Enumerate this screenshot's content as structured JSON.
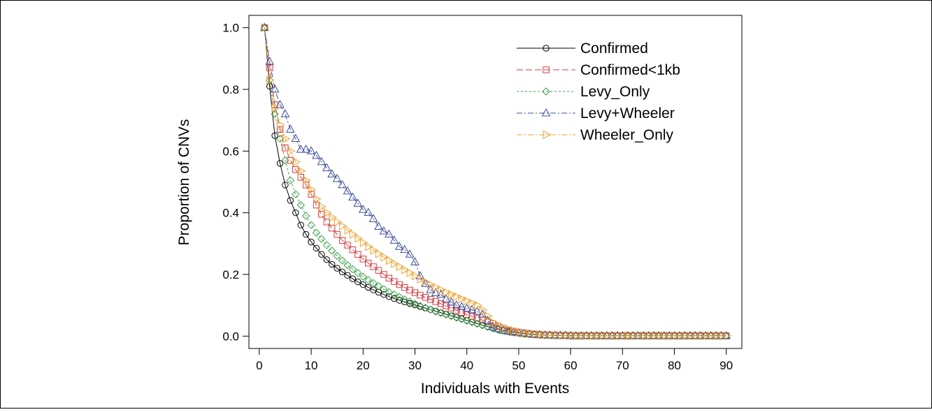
{
  "chart_data": {
    "type": "line",
    "title": "",
    "xlabel": "Individuals with Events",
    "ylabel": "Proportion of CNVs",
    "xlim": [
      -2,
      93
    ],
    "ylim": [
      -0.04,
      1.04
    ],
    "xticks": [
      0,
      10,
      20,
      30,
      40,
      50,
      60,
      70,
      80,
      90
    ],
    "xtick_labels": [
      "0",
      "10",
      "20",
      "30",
      "40",
      "50",
      "60",
      "70",
      "80",
      "90"
    ],
    "yticks": [
      0.0,
      0.2,
      0.4,
      0.6,
      0.8,
      1.0
    ],
    "ytick_labels": [
      "0.0",
      "0.2",
      "0.4",
      "0.6",
      "0.8",
      "1.0"
    ],
    "grid": false,
    "legend_position": "top-right",
    "x_start": 1,
    "series": [
      {
        "name": "Confirmed",
        "color": "#000000",
        "marker": "circle",
        "dash": "solid",
        "values": [
          1.0,
          0.81,
          0.65,
          0.56,
          0.49,
          0.44,
          0.4,
          0.36,
          0.33,
          0.305,
          0.285,
          0.265,
          0.248,
          0.233,
          0.22,
          0.208,
          0.197,
          0.186,
          0.176,
          0.167,
          0.158,
          0.15,
          0.142,
          0.135,
          0.128,
          0.122,
          0.116,
          0.111,
          0.106,
          0.101,
          0.096,
          0.091,
          0.086,
          0.081,
          0.076,
          0.071,
          0.066,
          0.061,
          0.056,
          0.051,
          0.046,
          0.041,
          0.036,
          0.031,
          0.026,
          0.022,
          0.019,
          0.016,
          0.013,
          0.01,
          0.008,
          0.006,
          0.005,
          0.004,
          0.003,
          0.003,
          0.002,
          0.002,
          0.002,
          0.001,
          0.001,
          0.001,
          0.001,
          0.001,
          0.001,
          0.001,
          0.001,
          0.001,
          0.001,
          0.001,
          0.001,
          0.001,
          0.001,
          0.001,
          0.001,
          0.001,
          0.001,
          0.001,
          0.001,
          0.001,
          0.001,
          0.001,
          0.001,
          0.001,
          0.001,
          0.001,
          0.001,
          0.001,
          0.001,
          0.001
        ]
      },
      {
        "name": "Confirmed<1kb",
        "color": "#e0393e",
        "marker": "square",
        "dash": "longdash",
        "values": [
          1.0,
          0.87,
          0.75,
          0.67,
          0.61,
          0.57,
          0.54,
          0.515,
          0.49,
          0.46,
          0.425,
          0.395,
          0.37,
          0.35,
          0.33,
          0.31,
          0.295,
          0.28,
          0.265,
          0.25,
          0.237,
          0.225,
          0.213,
          0.2,
          0.188,
          0.177,
          0.167,
          0.158,
          0.149,
          0.141,
          0.133,
          0.126,
          0.119,
          0.112,
          0.105,
          0.098,
          0.091,
          0.084,
          0.077,
          0.07,
          0.064,
          0.058,
          0.052,
          0.046,
          0.04,
          0.032,
          0.025,
          0.02,
          0.016,
          0.013,
          0.01,
          0.008,
          0.006,
          0.005,
          0.004,
          0.003,
          0.003,
          0.002,
          0.002,
          0.002,
          0.001,
          0.001,
          0.001,
          0.001,
          0.001,
          0.001,
          0.001,
          0.001,
          0.001,
          0.001,
          0.001,
          0.001,
          0.001,
          0.001,
          0.001,
          0.001,
          0.001,
          0.001,
          0.001,
          0.001,
          0.001,
          0.001,
          0.001,
          0.001,
          0.001,
          0.001,
          0.001,
          0.001,
          0.001,
          0.001
        ]
      },
      {
        "name": "Levy_Only",
        "color": "#3aa346",
        "marker": "diamond",
        "dash": "shortdash",
        "values": [
          1.0,
          0.83,
          0.72,
          0.64,
          0.57,
          0.505,
          0.46,
          0.425,
          0.39,
          0.36,
          0.335,
          0.315,
          0.295,
          0.277,
          0.26,
          0.245,
          0.23,
          0.217,
          0.205,
          0.193,
          0.182,
          0.172,
          0.162,
          0.152,
          0.143,
          0.135,
          0.127,
          0.119,
          0.112,
          0.105,
          0.098,
          0.092,
          0.086,
          0.08,
          0.075,
          0.07,
          0.065,
          0.06,
          0.055,
          0.05,
          0.045,
          0.04,
          0.035,
          0.03,
          0.025,
          0.021,
          0.018,
          0.015,
          0.012,
          0.01,
          0.008,
          0.006,
          0.005,
          0.004,
          0.003,
          0.003,
          0.002,
          0.002,
          0.002,
          0.001,
          0.001,
          0.001,
          0.001,
          0.001,
          0.001,
          0.001,
          0.001,
          0.001,
          0.001,
          0.001,
          0.001,
          0.001,
          0.001,
          0.001,
          0.001,
          0.001,
          0.001,
          0.001,
          0.001,
          0.001,
          0.001,
          0.001,
          0.001,
          0.001,
          0.001,
          0.001,
          0.001,
          0.001,
          0.001,
          0.001
        ]
      },
      {
        "name": "Levy+Wheeler",
        "color": "#3c4fa1",
        "marker": "triangle-up",
        "dash": "dashdot",
        "values": [
          1.0,
          0.89,
          0.8,
          0.75,
          0.72,
          0.67,
          0.64,
          0.605,
          0.605,
          0.6,
          0.585,
          0.565,
          0.545,
          0.525,
          0.51,
          0.49,
          0.47,
          0.45,
          0.43,
          0.41,
          0.4,
          0.38,
          0.355,
          0.34,
          0.33,
          0.31,
          0.29,
          0.28,
          0.265,
          0.24,
          0.195,
          0.17,
          0.15,
          0.14,
          0.135,
          0.12,
          0.11,
          0.1,
          0.095,
          0.09,
          0.085,
          0.08,
          0.07,
          0.05,
          0.03,
          0.024,
          0.018,
          0.015,
          0.012,
          0.01,
          0.008,
          0.006,
          0.005,
          0.004,
          0.003,
          0.003,
          0.002,
          0.002,
          0.002,
          0.001,
          0.001,
          0.001,
          0.001,
          0.001,
          0.001,
          0.001,
          0.001,
          0.001,
          0.001,
          0.001,
          0.001,
          0.001,
          0.001,
          0.001,
          0.001,
          0.001,
          0.001,
          0.001,
          0.001,
          0.001,
          0.001,
          0.001,
          0.001,
          0.001,
          0.001,
          0.001,
          0.001,
          0.001,
          0.001,
          0.001
        ]
      },
      {
        "name": "Wheeler_Only",
        "color": "#f5a12b",
        "marker": "triangle-right",
        "dash": "dashdot",
        "values": [
          1.0,
          0.83,
          0.74,
          0.685,
          0.64,
          0.6,
          0.565,
          0.535,
          0.505,
          0.475,
          0.445,
          0.42,
          0.4,
          0.385,
          0.37,
          0.357,
          0.343,
          0.33,
          0.317,
          0.303,
          0.29,
          0.278,
          0.267,
          0.256,
          0.245,
          0.235,
          0.225,
          0.215,
          0.205,
          0.195,
          0.185,
          0.176,
          0.167,
          0.158,
          0.15,
          0.142,
          0.135,
          0.128,
          0.121,
          0.114,
          0.107,
          0.1,
          0.085,
          0.065,
          0.045,
          0.036,
          0.028,
          0.022,
          0.017,
          0.013,
          0.01,
          0.008,
          0.006,
          0.005,
          0.004,
          0.003,
          0.003,
          0.002,
          0.002,
          0.002,
          0.001,
          0.001,
          0.001,
          0.001,
          0.001,
          0.001,
          0.001,
          0.001,
          0.001,
          0.001,
          0.001,
          0.001,
          0.001,
          0.001,
          0.001,
          0.001,
          0.001,
          0.001,
          0.001,
          0.001,
          0.001,
          0.001,
          0.001,
          0.001,
          0.001,
          0.001,
          0.001,
          0.001,
          0.001,
          0.001
        ]
      }
    ]
  }
}
